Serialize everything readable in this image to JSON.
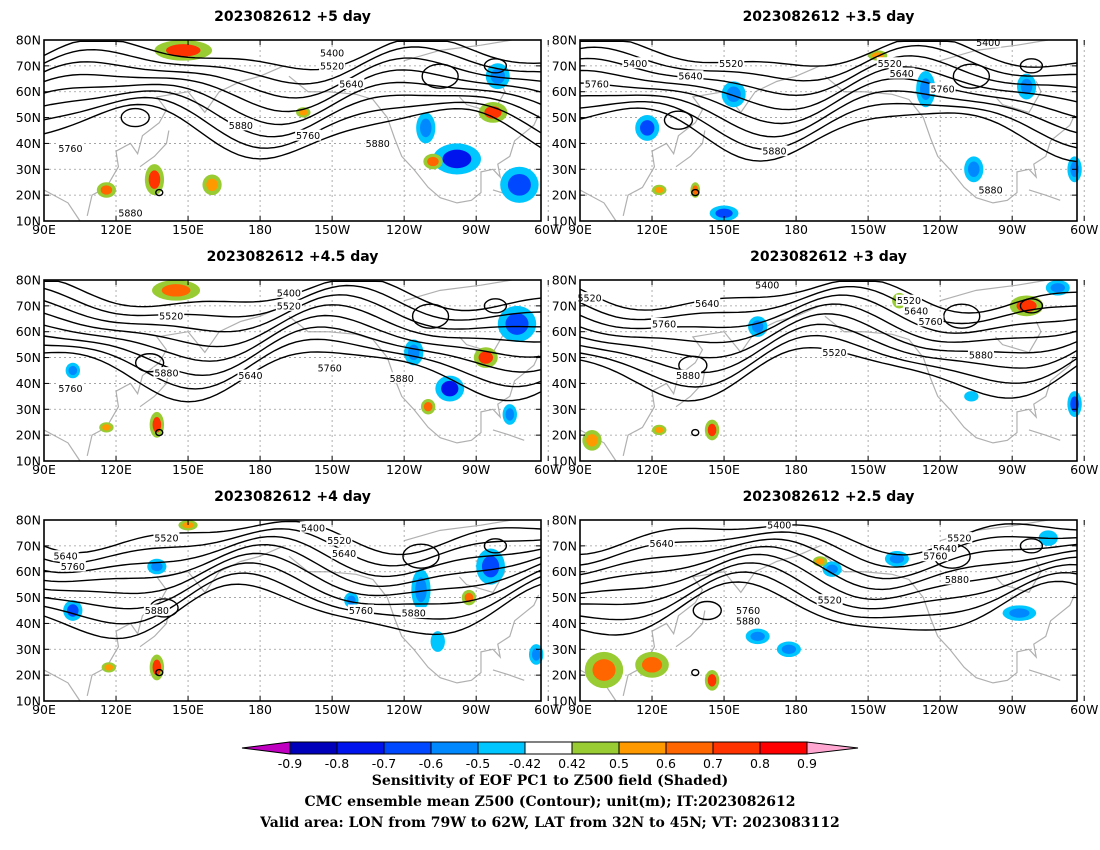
{
  "chart_data": {
    "type": "heatmap",
    "description_fields": {
      "shading_variable": "Sensitivity of EOF PC1 to Z500 field (Shaded)",
      "contour_variable": "CMC ensemble mean Z500 (Contour); unit(m); IT:2023082612",
      "valid_area": "Valid area: LON from 79W to 62W, LAT from 32N to 45N; VT: 2023083112"
    },
    "longitude_range": [
      90,
      297
    ],
    "latitude_range": [
      10,
      80
    ],
    "x_ticks": [
      "90E",
      "120E",
      "150E",
      "180",
      "150W",
      "120W",
      "90W",
      "60W"
    ],
    "y_ticks": [
      "10N",
      "20N",
      "30N",
      "40N",
      "50N",
      "60N",
      "70N",
      "80N"
    ],
    "panels": [
      {
        "title": "2023082612 +5 day",
        "contour_labels": [
          {
            "text": "5400",
            "lon": 210,
            "lat": 75
          },
          {
            "text": "5520",
            "lon": 210,
            "lat": 70
          },
          {
            "text": "5640",
            "lon": 218,
            "lat": 63
          },
          {
            "text": "5760",
            "lon": 101,
            "lat": 38
          },
          {
            "text": "5880",
            "lon": 172,
            "lat": 47
          },
          {
            "text": "5760",
            "lon": 200,
            "lat": 43
          },
          {
            "text": "5880",
            "lon": 229,
            "lat": 40
          },
          {
            "text": "5880",
            "lon": 126,
            "lat": 13
          }
        ],
        "sensitivity_blobs": [
          {
            "lon": 148,
            "lat": 76,
            "rx": 12,
            "ry": 4,
            "value": 0.7
          },
          {
            "lon": 136,
            "lat": 26,
            "rx": 4,
            "ry": 6,
            "value": 0.7
          },
          {
            "lon": 116,
            "lat": 22,
            "rx": 4,
            "ry": 3,
            "value": 0.6
          },
          {
            "lon": 160,
            "lat": 24,
            "rx": 4,
            "ry": 4,
            "value": 0.5
          },
          {
            "lon": 198,
            "lat": 52,
            "rx": 3,
            "ry": 2,
            "value": 0.5
          },
          {
            "lon": 249,
            "lat": 46,
            "rx": 4,
            "ry": 6,
            "value": -0.6
          },
          {
            "lon": 262,
            "lat": 34,
            "rx": 10,
            "ry": 6,
            "value": -0.8
          },
          {
            "lon": 252,
            "lat": 33,
            "rx": 4,
            "ry": 3,
            "value": 0.6
          },
          {
            "lon": 277,
            "lat": 52,
            "rx": 6,
            "ry": 4,
            "value": 0.7
          },
          {
            "lon": 279,
            "lat": 66,
            "rx": 5,
            "ry": 5,
            "value": -0.6
          },
          {
            "lon": 288,
            "lat": 24,
            "rx": 8,
            "ry": 7,
            "value": -0.7
          }
        ]
      },
      {
        "title": "2023082612 +3.5 day",
        "contour_labels": [
          {
            "text": "5400",
            "lon": 260,
            "lat": 79
          },
          {
            "text": "5400",
            "lon": 113,
            "lat": 71
          },
          {
            "text": "5520",
            "lon": 153,
            "lat": 71
          },
          {
            "text": "5640",
            "lon": 136,
            "lat": 66
          },
          {
            "text": "5760",
            "lon": 97,
            "lat": 63
          },
          {
            "text": "5520",
            "lon": 219,
            "lat": 71
          },
          {
            "text": "5640",
            "lon": 224,
            "lat": 67
          },
          {
            "text": "5760",
            "lon": 241,
            "lat": 61
          },
          {
            "text": "5880",
            "lon": 171,
            "lat": 37
          },
          {
            "text": "5880",
            "lon": 261,
            "lat": 22
          }
        ],
        "sensitivity_blobs": [
          {
            "lon": 118,
            "lat": 46,
            "rx": 5,
            "ry": 5,
            "value": -0.7
          },
          {
            "lon": 154,
            "lat": 59,
            "rx": 5,
            "ry": 5,
            "value": -0.6
          },
          {
            "lon": 150,
            "lat": 13,
            "rx": 6,
            "ry": 3,
            "value": -0.7
          },
          {
            "lon": 123,
            "lat": 22,
            "rx": 3,
            "ry": 2,
            "value": 0.5
          },
          {
            "lon": 138,
            "lat": 22,
            "rx": 2,
            "ry": 3,
            "value": 0.6
          },
          {
            "lon": 234,
            "lat": 61,
            "rx": 4,
            "ry": 7,
            "value": -0.6
          },
          {
            "lon": 254,
            "lat": 30,
            "rx": 4,
            "ry": 5,
            "value": -0.6
          },
          {
            "lon": 276,
            "lat": 62,
            "rx": 4,
            "ry": 5,
            "value": -0.6
          },
          {
            "lon": 296,
            "lat": 30,
            "rx": 3,
            "ry": 5,
            "value": -0.6
          },
          {
            "lon": 214,
            "lat": 74,
            "rx": 4,
            "ry": 2,
            "value": 0.5
          }
        ]
      },
      {
        "title": "2023082612 +4.5 day",
        "contour_labels": [
          {
            "text": "5400",
            "lon": 192,
            "lat": 75
          },
          {
            "text": "5520",
            "lon": 192,
            "lat": 70
          },
          {
            "text": "5520",
            "lon": 143,
            "lat": 66
          },
          {
            "text": "5760",
            "lon": 101,
            "lat": 38
          },
          {
            "text": "5880",
            "lon": 141,
            "lat": 44
          },
          {
            "text": "5640",
            "lon": 176,
            "lat": 43
          },
          {
            "text": "5760",
            "lon": 209,
            "lat": 46
          },
          {
            "text": "5880",
            "lon": 239,
            "lat": 42
          }
        ],
        "sensitivity_blobs": [
          {
            "lon": 145,
            "lat": 76,
            "rx": 10,
            "ry": 4,
            "value": 0.6
          },
          {
            "lon": 137,
            "lat": 24,
            "rx": 3,
            "ry": 5,
            "value": 0.7
          },
          {
            "lon": 116,
            "lat": 23,
            "rx": 3,
            "ry": 2,
            "value": 0.5
          },
          {
            "lon": 102,
            "lat": 45,
            "rx": 3,
            "ry": 3,
            "value": -0.6
          },
          {
            "lon": 244,
            "lat": 52,
            "rx": 4,
            "ry": 5,
            "value": -0.6
          },
          {
            "lon": 259,
            "lat": 38,
            "rx": 6,
            "ry": 5,
            "value": -0.8
          },
          {
            "lon": 250,
            "lat": 31,
            "rx": 3,
            "ry": 3,
            "value": 0.6
          },
          {
            "lon": 274,
            "lat": 50,
            "rx": 5,
            "ry": 4,
            "value": 0.7
          },
          {
            "lon": 287,
            "lat": 63,
            "rx": 8,
            "ry": 7,
            "value": -0.7
          },
          {
            "lon": 284,
            "lat": 28,
            "rx": 3,
            "ry": 4,
            "value": -0.6
          }
        ]
      },
      {
        "title": "2023082612 +3 day",
        "contour_labels": [
          {
            "text": "5400",
            "lon": 168,
            "lat": 78
          },
          {
            "text": "5520",
            "lon": 94,
            "lat": 73
          },
          {
            "text": "5640",
            "lon": 143,
            "lat": 71
          },
          {
            "text": "5760",
            "lon": 125,
            "lat": 63
          },
          {
            "text": "5520",
            "lon": 227,
            "lat": 72
          },
          {
            "text": "5640",
            "lon": 230,
            "lat": 68
          },
          {
            "text": "5760",
            "lon": 236,
            "lat": 64
          },
          {
            "text": "5520",
            "lon": 196,
            "lat": 52
          },
          {
            "text": "5880",
            "lon": 135,
            "lat": 43
          },
          {
            "text": "5880",
            "lon": 257,
            "lat": 51
          }
        ],
        "sensitivity_blobs": [
          {
            "lon": 276,
            "lat": 70,
            "rx": 7,
            "ry": 4,
            "value": 0.7
          },
          {
            "lon": 289,
            "lat": 77,
            "rx": 5,
            "ry": 3,
            "value": -0.6
          },
          {
            "lon": 145,
            "lat": 22,
            "rx": 3,
            "ry": 4,
            "value": 0.7
          },
          {
            "lon": 123,
            "lat": 22,
            "rx": 3,
            "ry": 2,
            "value": 0.5
          },
          {
            "lon": 164,
            "lat": 62,
            "rx": 4,
            "ry": 4,
            "value": -0.6
          },
          {
            "lon": 223,
            "lat": 72,
            "rx": 3,
            "ry": 3,
            "value": 0.5
          },
          {
            "lon": 296,
            "lat": 32,
            "rx": 3,
            "ry": 5,
            "value": -0.7
          },
          {
            "lon": 253,
            "lat": 35,
            "rx": 3,
            "ry": 2,
            "value": -0.5
          },
          {
            "lon": 95,
            "lat": 18,
            "rx": 4,
            "ry": 4,
            "value": 0.5
          }
        ]
      },
      {
        "title": "2023082612 +4 day",
        "contour_labels": [
          {
            "text": "5400",
            "lon": 202,
            "lat": 77
          },
          {
            "text": "5520",
            "lon": 141,
            "lat": 73
          },
          {
            "text": "5520",
            "lon": 213,
            "lat": 72
          },
          {
            "text": "5640",
            "lon": 215,
            "lat": 67
          },
          {
            "text": "5640",
            "lon": 99,
            "lat": 66
          },
          {
            "text": "5760",
            "lon": 102,
            "lat": 62
          },
          {
            "text": "5880",
            "lon": 137,
            "lat": 45
          },
          {
            "text": "5760",
            "lon": 222,
            "lat": 45
          },
          {
            "text": "5880",
            "lon": 244,
            "lat": 44
          }
        ],
        "sensitivity_blobs": [
          {
            "lon": 102,
            "lat": 45,
            "rx": 4,
            "ry": 4,
            "value": -0.7
          },
          {
            "lon": 137,
            "lat": 62,
            "rx": 4,
            "ry": 3,
            "value": -0.6
          },
          {
            "lon": 137,
            "lat": 23,
            "rx": 3,
            "ry": 5,
            "value": 0.7
          },
          {
            "lon": 117,
            "lat": 23,
            "rx": 3,
            "ry": 2,
            "value": 0.5
          },
          {
            "lon": 150,
            "lat": 78,
            "rx": 4,
            "ry": 2,
            "value": 0.5
          },
          {
            "lon": 218,
            "lat": 49,
            "rx": 3,
            "ry": 3,
            "value": -0.6
          },
          {
            "lon": 247,
            "lat": 53,
            "rx": 4,
            "ry": 8,
            "value": -0.6
          },
          {
            "lon": 267,
            "lat": 50,
            "rx": 3,
            "ry": 3,
            "value": 0.6
          },
          {
            "lon": 276,
            "lat": 62,
            "rx": 6,
            "ry": 7,
            "value": -0.7
          },
          {
            "lon": 254,
            "lat": 33,
            "rx": 3,
            "ry": 4,
            "value": -0.5
          },
          {
            "lon": 295,
            "lat": 28,
            "rx": 3,
            "ry": 4,
            "value": -0.6
          }
        ]
      },
      {
        "title": "2023082612 +2.5 day",
        "contour_labels": [
          {
            "text": "5400",
            "lon": 173,
            "lat": 78
          },
          {
            "text": "5640",
            "lon": 124,
            "lat": 71
          },
          {
            "text": "5520",
            "lon": 248,
            "lat": 73
          },
          {
            "text": "5640",
            "lon": 242,
            "lat": 69
          },
          {
            "text": "5760",
            "lon": 238,
            "lat": 66
          },
          {
            "text": "5880",
            "lon": 247,
            "lat": 57
          },
          {
            "text": "5520",
            "lon": 194,
            "lat": 49
          },
          {
            "text": "5760",
            "lon": 160,
            "lat": 45
          },
          {
            "text": "5880",
            "lon": 160,
            "lat": 41
          }
        ],
        "sensitivity_blobs": [
          {
            "lon": 100,
            "lat": 22,
            "rx": 8,
            "ry": 7,
            "value": 0.6
          },
          {
            "lon": 120,
            "lat": 24,
            "rx": 7,
            "ry": 5,
            "value": 0.6
          },
          {
            "lon": 145,
            "lat": 18,
            "rx": 3,
            "ry": 4,
            "value": 0.7
          },
          {
            "lon": 164,
            "lat": 35,
            "rx": 5,
            "ry": 3,
            "value": -0.6
          },
          {
            "lon": 177,
            "lat": 30,
            "rx": 5,
            "ry": 3,
            "value": -0.6
          },
          {
            "lon": 195,
            "lat": 61,
            "rx": 4,
            "ry": 3,
            "value": -0.6
          },
          {
            "lon": 222,
            "lat": 65,
            "rx": 5,
            "ry": 3,
            "value": -0.6
          },
          {
            "lon": 273,
            "lat": 44,
            "rx": 7,
            "ry": 3,
            "value": -0.6
          },
          {
            "lon": 285,
            "lat": 73,
            "rx": 4,
            "ry": 3,
            "value": -0.5
          },
          {
            "lon": 190,
            "lat": 64,
            "rx": 3,
            "ry": 2,
            "value": 0.5
          }
        ]
      }
    ],
    "colorbar": {
      "boundaries": [
        "-0.9",
        "-0.8",
        "-0.7",
        "-0.6",
        "-0.5",
        "-0.42",
        "0.42",
        "0.5",
        "0.6",
        "0.7",
        "0.8",
        "0.9"
      ],
      "colors": [
        "#0000bb",
        "#0015ee",
        "#0048ff",
        "#0089ff",
        "#00c6ff",
        "#ffffff",
        "#98cc32",
        "#ff9900",
        "#ff6600",
        "#ff3300",
        "#ff0000"
      ],
      "under_color": "#c000c0",
      "over_color": "#ffa6d1"
    }
  },
  "footer": {
    "line1": "Sensitivity of EOF PC1 to Z500 field (Shaded)",
    "line2": "CMC ensemble mean Z500 (Contour); unit(m); IT:2023082612",
    "line3": "Valid area: LON from 79W to 62W, LAT from 32N to 45N; VT: 2023083112"
  }
}
